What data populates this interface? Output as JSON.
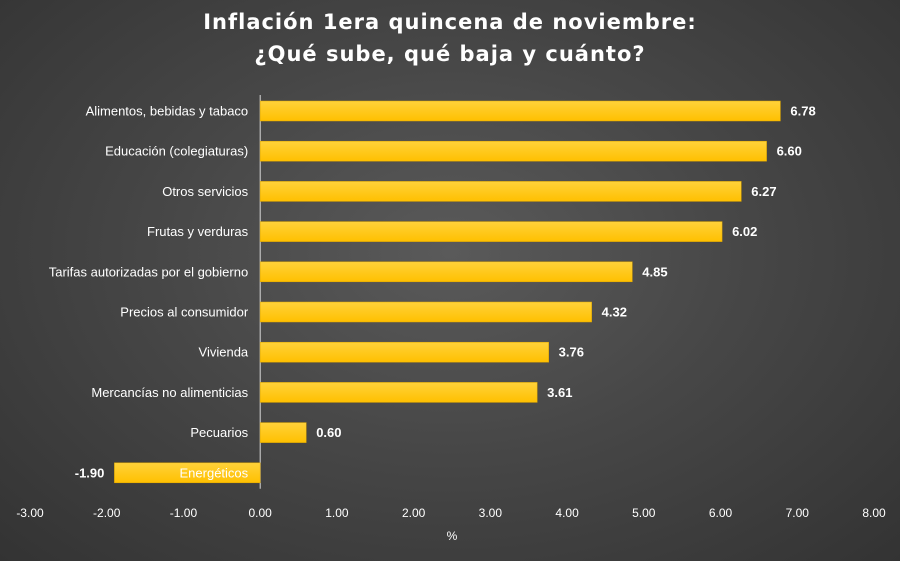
{
  "chart_data": {
    "type": "bar",
    "orientation": "horizontal",
    "title_lines": [
      "Inflación  1era quincena  de noviembre:",
      "¿Qué sube,  qué baja  y cuánto?"
    ],
    "categories": [
      "Alimentos, bebidas y tabaco",
      "Educación (colegiaturas)",
      "Otros servicios",
      "Frutas y verduras",
      "Tarifas autorizadas por el gobierno",
      "Precios al consumidor",
      "Vivienda",
      "Mercancías no alimenticias",
      "Pecuarios",
      "Energéticos"
    ],
    "values": [
      6.78,
      6.6,
      6.27,
      6.02,
      4.85,
      4.32,
      3.76,
      3.61,
      0.6,
      -1.9
    ],
    "value_labels": [
      "6.78",
      "6.60",
      "6.27",
      "6.02",
      "4.85",
      "4.32",
      "3.76",
      "3.61",
      "0.60",
      "-1.90"
    ],
    "xlabel": "%",
    "ylabel": "",
    "xlim": [
      -3.0,
      8.0
    ],
    "xticks": [
      "-3.00",
      "-2.00",
      "-1.00",
      "0.00",
      "1.00",
      "2.00",
      "3.00",
      "4.00",
      "5.00",
      "6.00",
      "7.00",
      "8.00"
    ],
    "xtick_values": [
      -3,
      -2,
      -1,
      0,
      1,
      2,
      3,
      4,
      5,
      6,
      7,
      8
    ],
    "grid": false,
    "legend": "none",
    "colors": {
      "bar_fill": "#FFC000",
      "bar_fill_light": "#FFD23A",
      "axis_line": "#D9D9D9",
      "text": "#FFFFFF",
      "background": "#474747"
    }
  }
}
